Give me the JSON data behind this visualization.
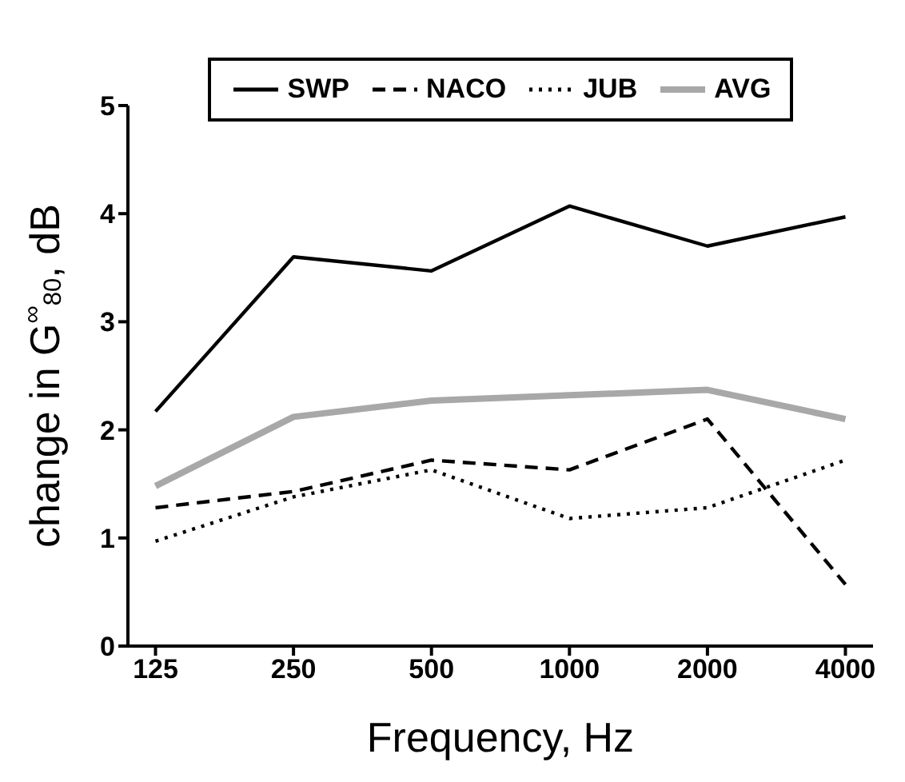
{
  "chart_data": {
    "type": "line",
    "xlabel": "Frequency, Hz",
    "ylabel": "change in G$^{∞}$$_{80}$, dB",
    "categories": [
      "125",
      "250",
      "500",
      "1000",
      "2000",
      "4000"
    ],
    "series": [
      {
        "name": "SWP",
        "color": "#000000",
        "line_style": "solid",
        "values": [
          2.17,
          3.6,
          3.47,
          4.07,
          3.7,
          3.97
        ]
      },
      {
        "name": "NACO",
        "color": "#000000",
        "line_style": "dashed",
        "values": [
          1.28,
          1.43,
          1.72,
          1.63,
          2.1,
          0.57
        ]
      },
      {
        "name": "JUB",
        "color": "#000000",
        "line_style": "dotted",
        "values": [
          0.97,
          1.38,
          1.63,
          1.18,
          1.28,
          1.72
        ]
      },
      {
        "name": "AVG",
        "color": "#a8a8a8",
        "line_style": "solid",
        "values": [
          1.48,
          2.12,
          2.27,
          2.32,
          2.37,
          2.1
        ]
      }
    ],
    "ylim": [
      0,
      5
    ],
    "yticks": [
      0,
      1,
      2,
      3,
      4,
      5
    ],
    "grid": false,
    "legend": "top",
    "marker": "none"
  }
}
